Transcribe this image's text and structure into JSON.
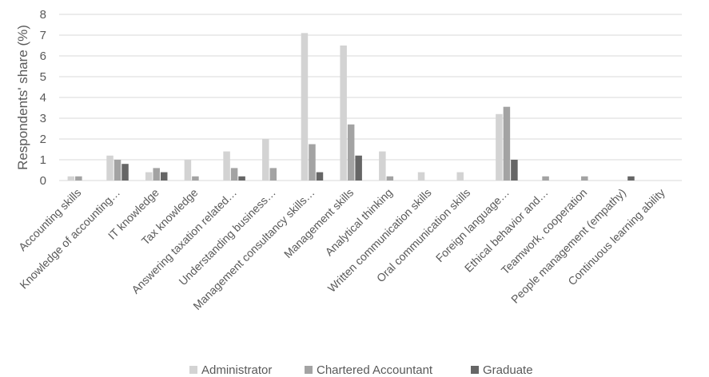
{
  "chart_data": {
    "type": "bar",
    "title": "",
    "xlabel": "",
    "ylabel": "Respondents' share (%)",
    "ylim": [
      0,
      8
    ],
    "yticks": [
      0,
      1,
      2,
      3,
      4,
      5,
      6,
      7,
      8
    ],
    "grid": true,
    "legend_position": "bottom",
    "categories": [
      "Accounting skills",
      "Knowledge of accounting…",
      "IT knowledge",
      "Tax knowledge",
      "Answering taxation related…",
      "Understanding business…",
      "Management consultancy skills…",
      "Management skills",
      "Analytical thinking",
      "Written communication skills",
      "Oral communication skills",
      "Foreign language…",
      "Ethical behavior and…",
      "Teamwork, cooperation",
      "People management (empathy)",
      "Continuous learning ability"
    ],
    "series": [
      {
        "name": "Administrator",
        "color": "#d3d3d3",
        "values": [
          0.2,
          1.2,
          0.4,
          1.0,
          1.4,
          2.0,
          7.1,
          6.5,
          1.4,
          0.4,
          0.4,
          3.2,
          0,
          0,
          0,
          0
        ]
      },
      {
        "name": "Chartered Accountant",
        "color": "#a3a3a3",
        "values": [
          0.2,
          1.0,
          0.6,
          0.2,
          0.6,
          0.6,
          1.75,
          2.7,
          0.2,
          0,
          0,
          3.55,
          0.2,
          0.2,
          0,
          0
        ]
      },
      {
        "name": "Graduate",
        "color": "#666666",
        "values": [
          0,
          0.8,
          0.4,
          0,
          0.2,
          0,
          0.4,
          1.2,
          0,
          0,
          0,
          1.0,
          0,
          0,
          0.2,
          0
        ]
      }
    ]
  }
}
